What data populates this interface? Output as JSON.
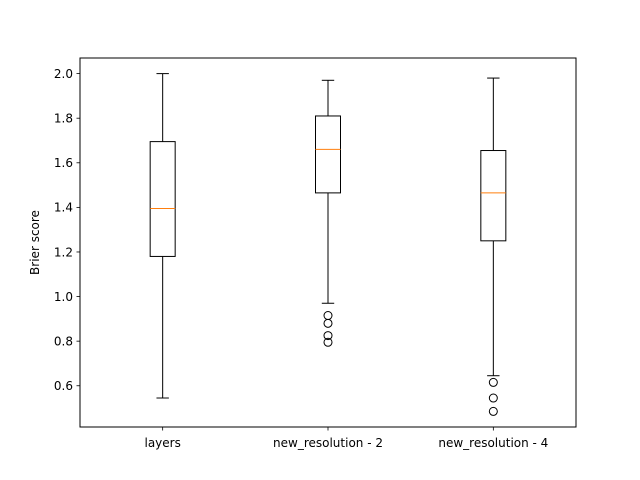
{
  "chart_data": {
    "type": "box",
    "title": "",
    "xlabel": "",
    "ylabel": "Brier score",
    "ylim": [
      0.415,
      2.07
    ],
    "grid": false,
    "yticks": [
      0.6,
      0.8,
      1.0,
      1.2,
      1.4,
      1.6,
      1.8,
      2.0
    ],
    "ytick_labels": [
      "0.6",
      "0.8",
      "1.0",
      "1.2",
      "1.4",
      "1.6",
      "1.8",
      "2.0"
    ],
    "categories": [
      "layers",
      "new_resolution - 2",
      "new_resolution - 4"
    ],
    "boxes": [
      {
        "whisker_low": 0.545,
        "q1": 1.18,
        "median": 1.395,
        "q3": 1.695,
        "whisker_high": 2.0,
        "outliers": []
      },
      {
        "whisker_low": 0.97,
        "q1": 1.465,
        "median": 1.66,
        "q3": 1.81,
        "whisker_high": 1.97,
        "outliers": [
          0.915,
          0.88,
          0.825,
          0.795
        ]
      },
      {
        "whisker_low": 0.645,
        "q1": 1.25,
        "median": 1.465,
        "q3": 1.655,
        "whisker_high": 1.98,
        "outliers": [
          0.615,
          0.545,
          0.485
        ]
      }
    ],
    "colors": {
      "box": "#000000",
      "median": "#ff7f0e",
      "outlier": "#000000"
    }
  }
}
